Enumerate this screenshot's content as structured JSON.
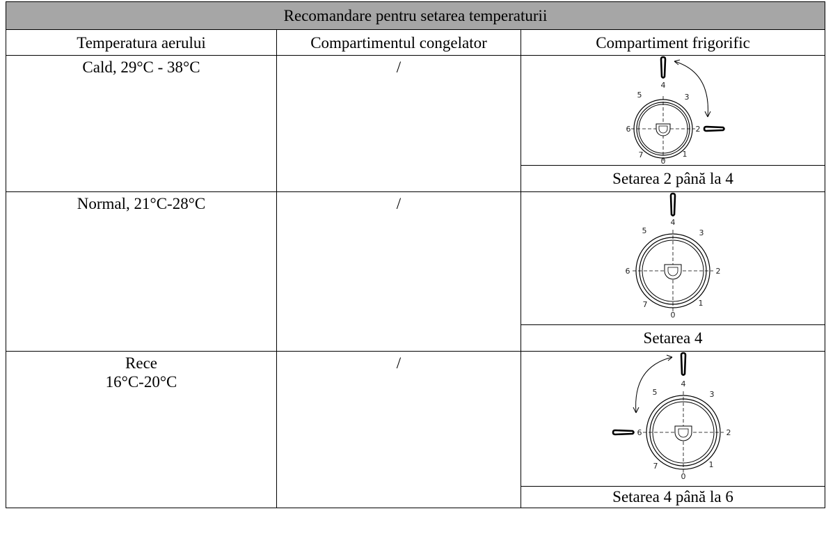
{
  "table": {
    "title": "Recomandare pentru setarea temperaturii",
    "headers": [
      "Temperatura aerului",
      "Compartimentul congelator",
      "Compartiment frigorific"
    ],
    "rows": [
      {
        "air_temp_line1": "Cald, 29°C - 38°C",
        "air_temp_line2": "",
        "freezer": "/",
        "fridge_setting": "Setarea 2 până la 4",
        "dial_marked": [
          2,
          4
        ]
      },
      {
        "air_temp_line1": "Normal, 21°C-28°C",
        "air_temp_line2": "",
        "freezer": "/",
        "fridge_setting": "Setarea 4",
        "dial_marked": [
          4
        ]
      },
      {
        "air_temp_line1": "Rece",
        "air_temp_line2": "16°C-20°C",
        "freezer": "/",
        "fridge_setting": "Setarea 4 până la 6",
        "dial_marked": [
          4,
          6
        ]
      }
    ]
  },
  "dial": {
    "numbers": [
      "0",
      "1",
      "2",
      "3",
      "4",
      "5",
      "6",
      "7"
    ]
  }
}
